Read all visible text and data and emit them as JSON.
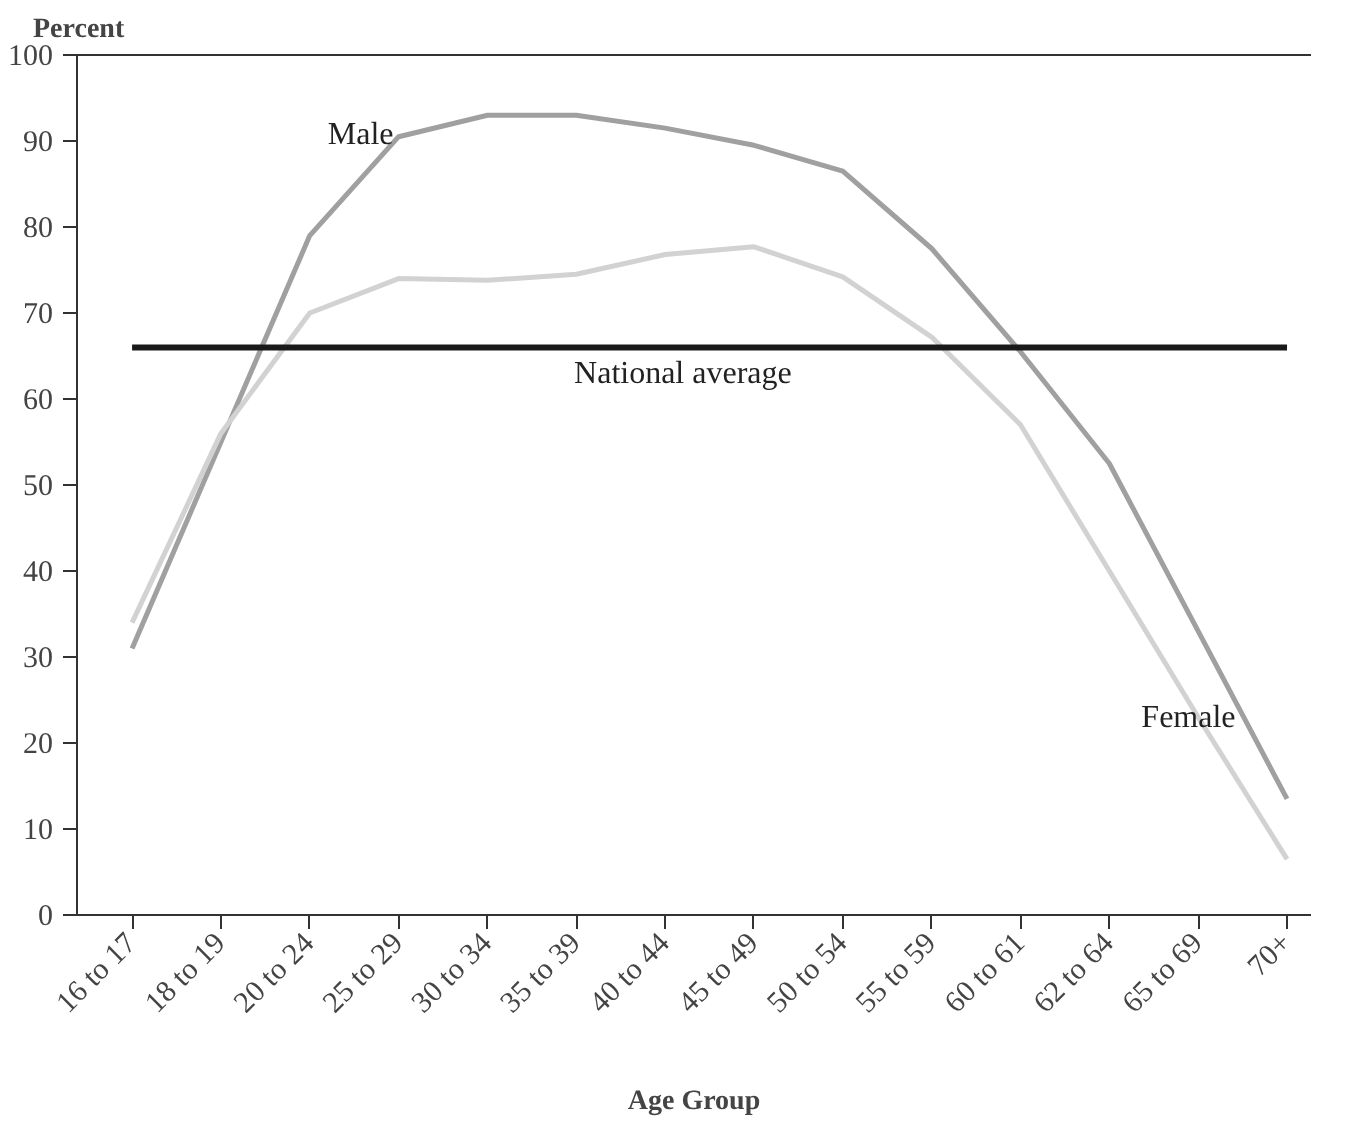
{
  "chart_data": {
    "type": "line",
    "xlabel": "Age Group",
    "ylabel": "Percent",
    "categories": [
      "16 to 17",
      "18 to 19",
      "20 to 24",
      "25 to 29",
      "30 to 34",
      "35 to 39",
      "40 to 44",
      "45 to 49",
      "50 to 54",
      "55 to 59",
      "60 to 61",
      "62 to 64",
      "65 to 69",
      "70+"
    ],
    "series": [
      {
        "name": "Male",
        "color": "#a0a0a0",
        "values": [
          31,
          55,
          79,
          90.5,
          93,
          93,
          91.5,
          89.5,
          86.5,
          77.5,
          65.5,
          52.5,
          33,
          13.5
        ]
      },
      {
        "name": "Female",
        "color": "#d2d2d2",
        "values": [
          34,
          56,
          70,
          74,
          73.8,
          74.5,
          76.8,
          77.7,
          74.2,
          67.2,
          57,
          40,
          23,
          6.5
        ]
      }
    ],
    "ylim": [
      0,
      100
    ],
    "yticks": [
      0,
      10,
      20,
      30,
      40,
      50,
      60,
      70,
      80,
      90,
      100
    ],
    "ref_lines": [
      {
        "axis": "y",
        "value": 66,
        "label": "National average",
        "color": "#1a1a1a"
      }
    ],
    "grid": false,
    "line_style": "solid",
    "marker": "none"
  }
}
